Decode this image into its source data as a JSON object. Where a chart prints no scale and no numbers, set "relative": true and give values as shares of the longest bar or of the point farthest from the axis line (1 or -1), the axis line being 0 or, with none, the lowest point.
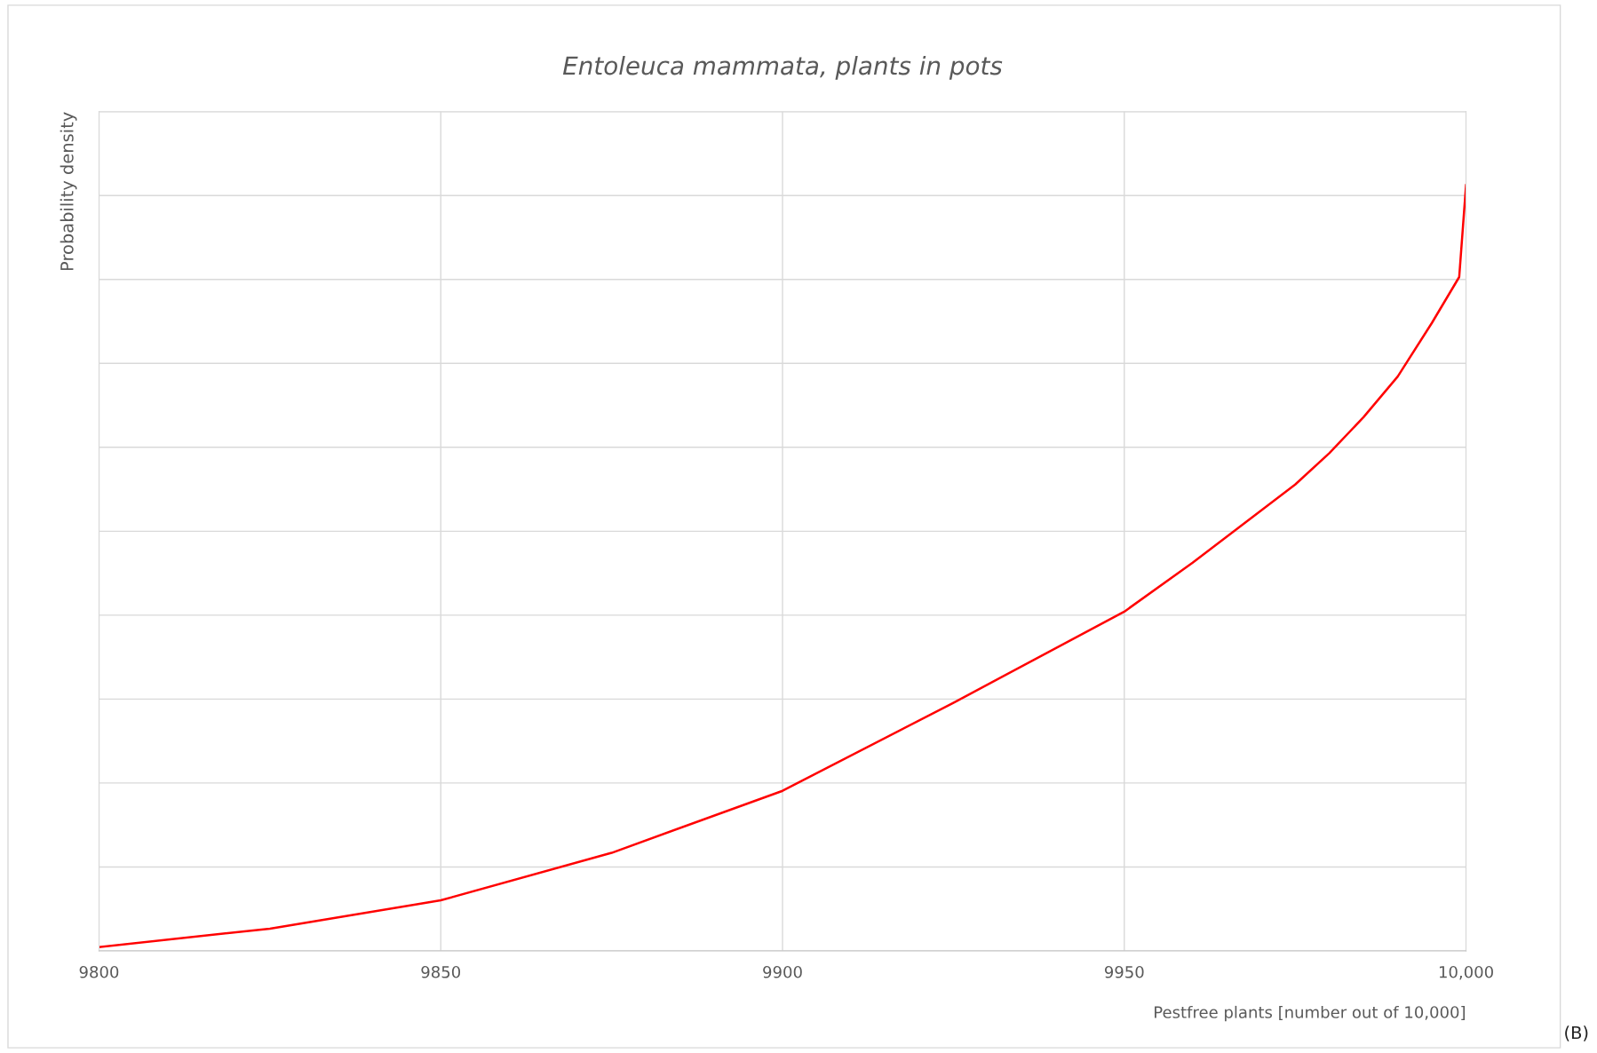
{
  "chart_data": {
    "type": "line",
    "title": "Entoleuca mammata, plants in pots",
    "xlabel": "Pestfree plants [number out of 10,000]",
    "ylabel": "Probability density",
    "relative": true,
    "x": [
      9800,
      9825,
      9850,
      9875,
      9900,
      9925,
      9950,
      9960,
      9975,
      9980,
      9985,
      9990,
      9995,
      9999,
      10000
    ],
    "series": [
      {
        "color": "#ff0000",
        "values": [
          0.005,
          0.029,
          0.066,
          0.128,
          0.209,
          0.324,
          0.443,
          0.507,
          0.609,
          0.65,
          0.697,
          0.75,
          0.82,
          0.88,
          1.0
        ]
      }
    ],
    "xlim": [
      9800,
      10000
    ],
    "xticks": [
      9800,
      9850,
      9900,
      9950,
      {
        "value": 10000,
        "label": "10,000"
      }
    ],
    "tick_labels": "x",
    "grid": true,
    "legend": false,
    "marker": "none",
    "line_style": "solid",
    "annotations": [
      "(B)"
    ]
  }
}
